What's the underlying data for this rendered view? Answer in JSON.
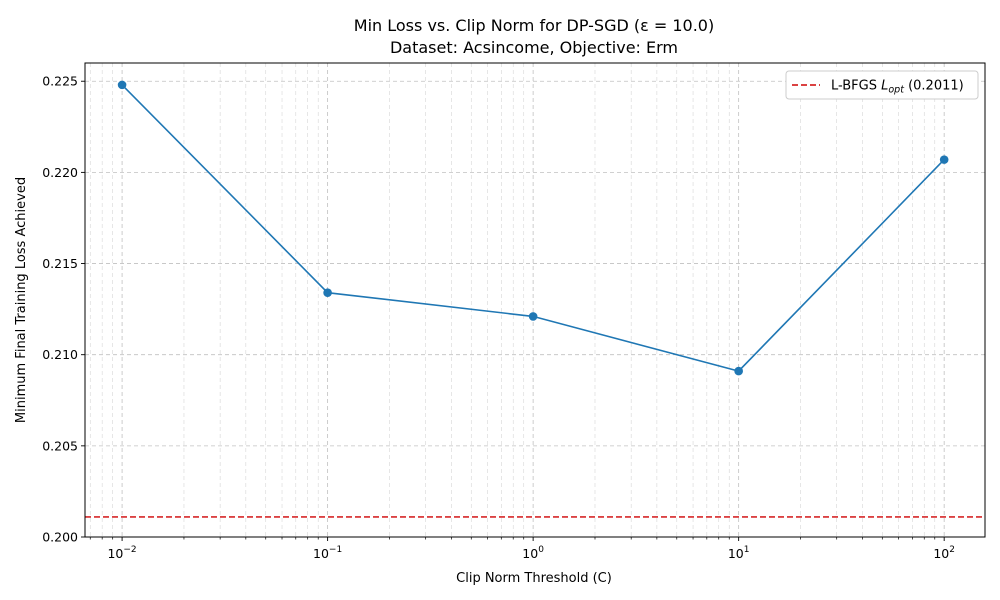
{
  "chart_data": {
    "type": "line",
    "title_line1": "Min Loss vs. Clip Norm for DP-SGD (ε = 10.0)",
    "title_line2": "Dataset: Acsincome, Objective: Erm",
    "xlabel": "Clip Norm Threshold (C)",
    "ylabel": "Minimum Final Training Loss Achieved",
    "x_scale": "log",
    "xlim": [
      0.0066,
      158
    ],
    "ylim": [
      0.2,
      0.226
    ],
    "x_ticks": [
      {
        "value": 0.01,
        "base": "10",
        "exp": "−2"
      },
      {
        "value": 0.1,
        "base": "10",
        "exp": "−1"
      },
      {
        "value": 1,
        "base": "10",
        "exp": "0"
      },
      {
        "value": 10,
        "base": "10",
        "exp": "1"
      },
      {
        "value": 100,
        "base": "10",
        "exp": "2"
      }
    ],
    "y_ticks": [
      {
        "value": 0.2,
        "label": "0.200"
      },
      {
        "value": 0.205,
        "label": "0.205"
      },
      {
        "value": 0.21,
        "label": "0.210"
      },
      {
        "value": 0.215,
        "label": "0.215"
      },
      {
        "value": 0.22,
        "label": "0.220"
      },
      {
        "value": 0.225,
        "label": "0.225"
      }
    ],
    "grid": true,
    "legend_position": "top-right",
    "series": [
      {
        "x": [
          0.01,
          0.1,
          1,
          10,
          100
        ],
        "y": [
          0.2248,
          0.2134,
          0.2121,
          0.2091,
          0.2207
        ],
        "color": "#1f77b4"
      }
    ],
    "reference_line": {
      "label_prefix": "L-BFGS ",
      "label_symbol": "L",
      "label_subscript": "opt",
      "label_suffix": " (0.2011)",
      "y": 0.2011,
      "color": "#d62728",
      "style": "dashed"
    }
  }
}
